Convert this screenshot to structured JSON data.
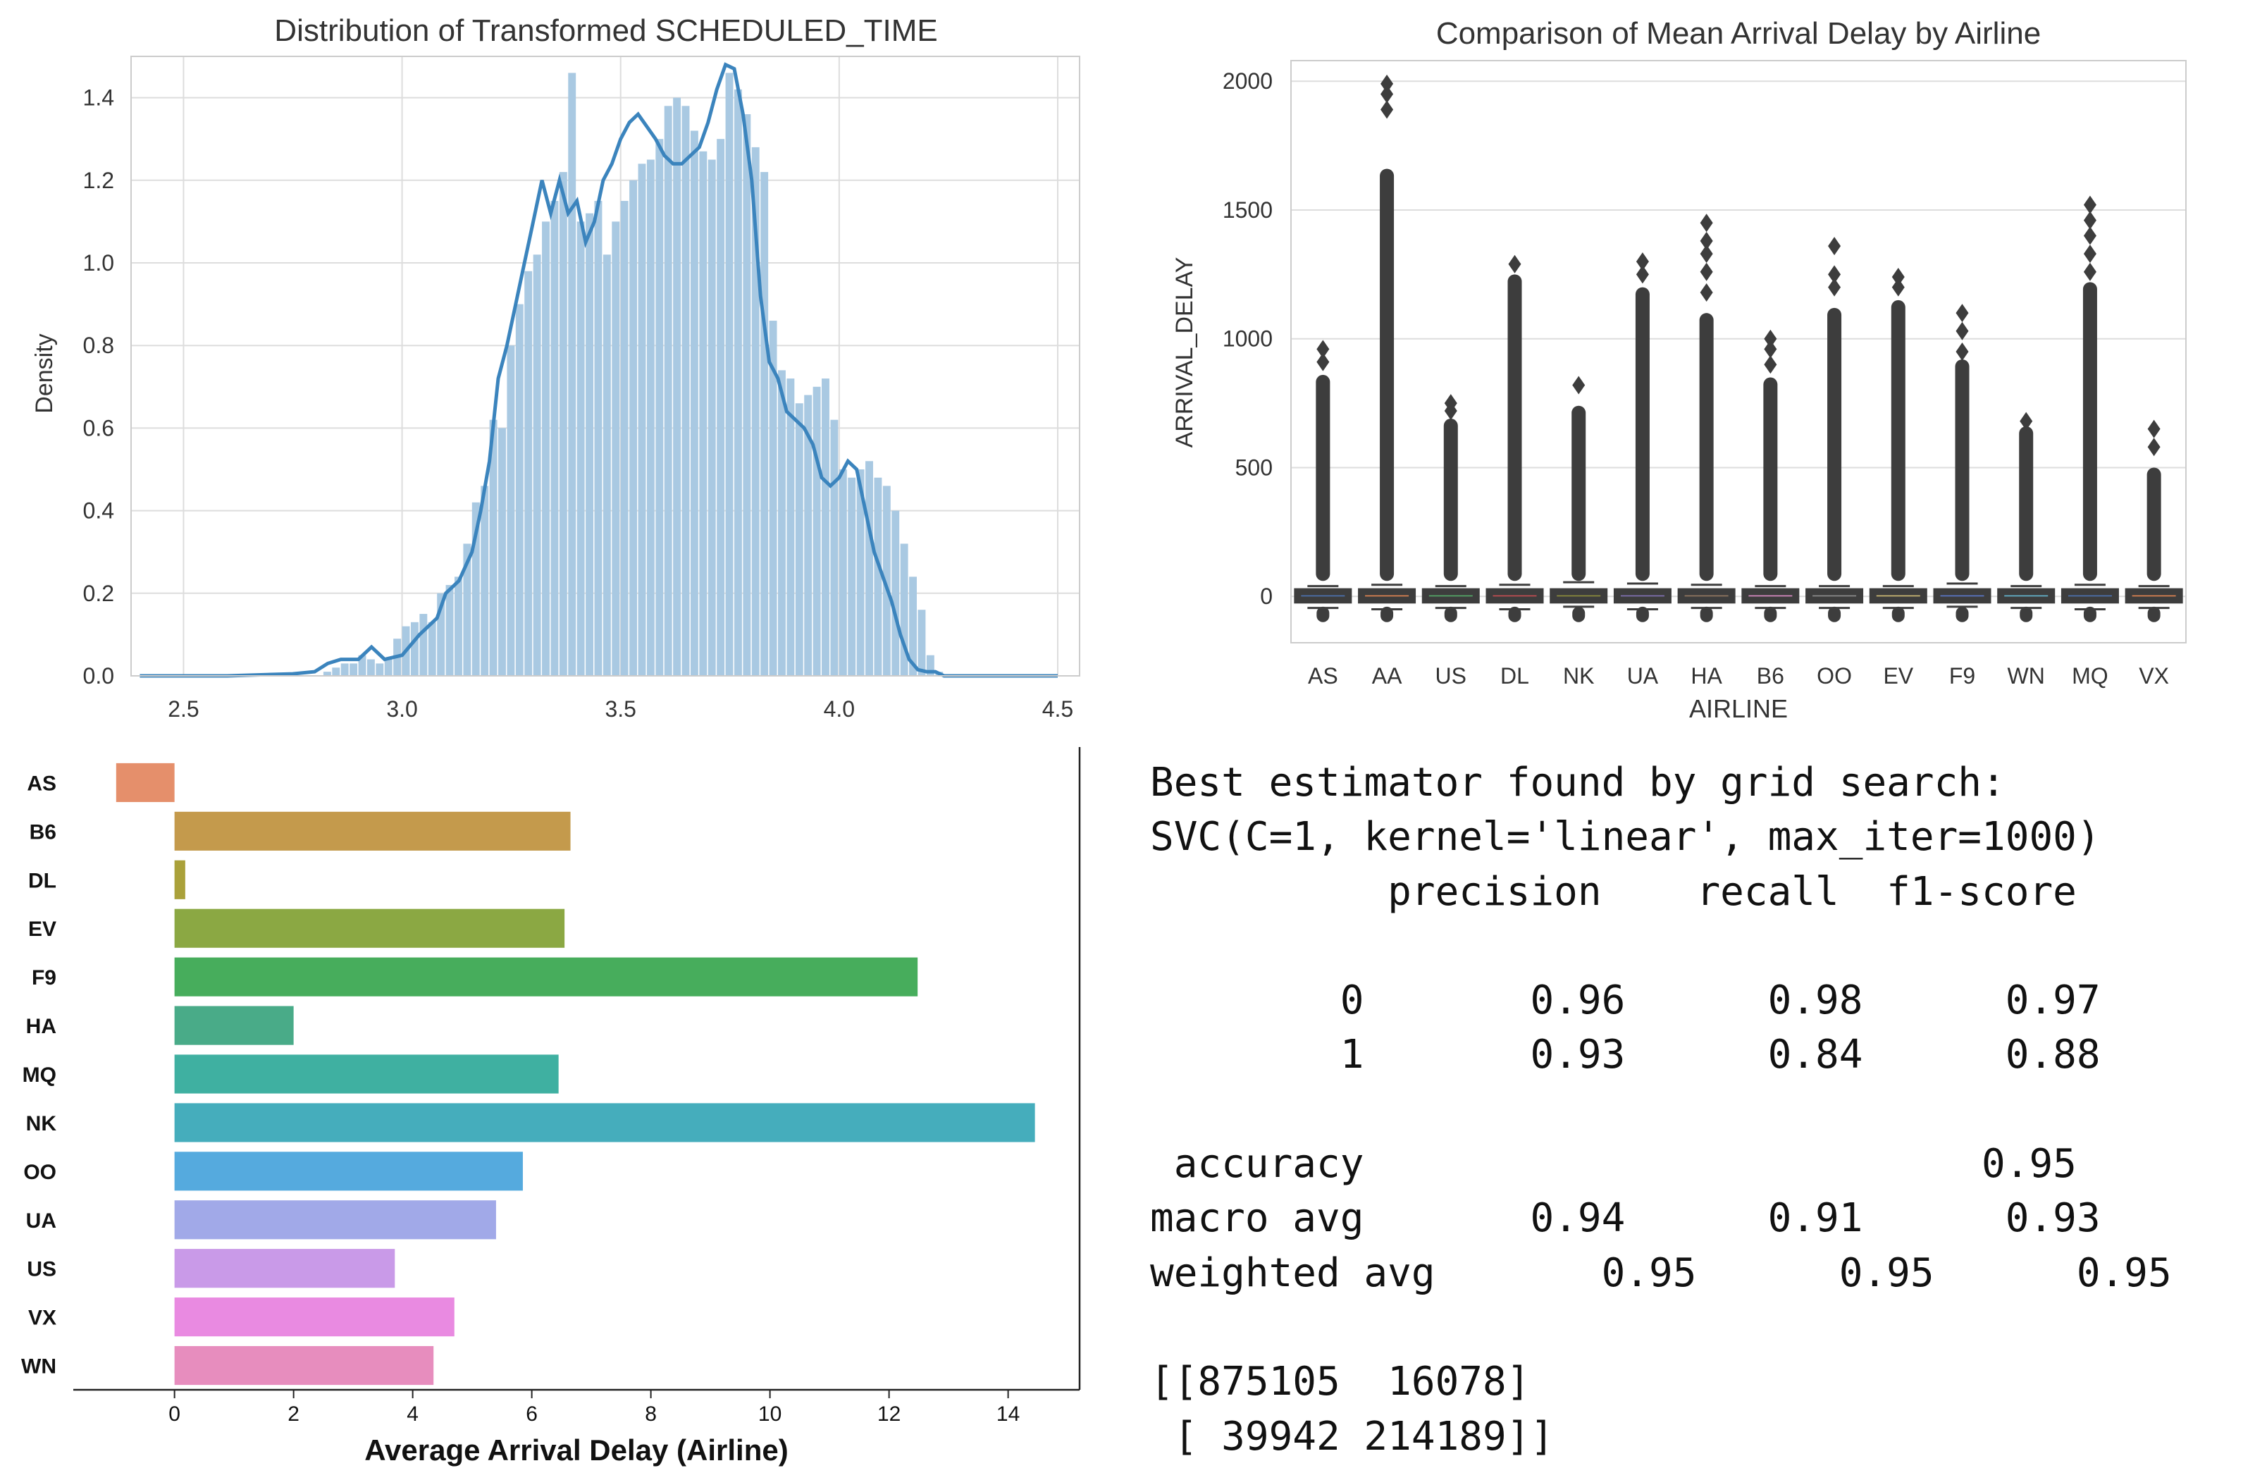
{
  "chart_data": [
    {
      "type": "histogram",
      "title": "Distribution of Transformed SCHEDULED_TIME",
      "xlabel": "",
      "ylabel": "Density",
      "xlim": [
        2.38,
        4.55
      ],
      "ylim": [
        0,
        1.5
      ],
      "xticks": [
        "2.5",
        "3.0",
        "3.5",
        "4.0",
        "4.5"
      ],
      "yticks": [
        "0.0",
        "0.2",
        "0.4",
        "0.6",
        "0.8",
        "1.0",
        "1.2",
        "1.4"
      ],
      "grid": true,
      "bar_color": "#a9c9e2",
      "kde_color": "#3b84bd",
      "bins": {
        "x": [
          2.83,
          2.85,
          2.87,
          2.89,
          2.91,
          2.93,
          2.95,
          2.97,
          2.99,
          3.01,
          3.03,
          3.05,
          3.07,
          3.09,
          3.11,
          3.13,
          3.15,
          3.17,
          3.19,
          3.21,
          3.23,
          3.25,
          3.27,
          3.29,
          3.31,
          3.33,
          3.35,
          3.37,
          3.39,
          3.41,
          3.43,
          3.45,
          3.47,
          3.49,
          3.51,
          3.53,
          3.55,
          3.57,
          3.59,
          3.61,
          3.63,
          3.65,
          3.67,
          3.69,
          3.71,
          3.73,
          3.75,
          3.77,
          3.79,
          3.81,
          3.83,
          3.85,
          3.87,
          3.89,
          3.91,
          3.93,
          3.95,
          3.97,
          3.99,
          4.01,
          4.03,
          4.05,
          4.07,
          4.09,
          4.11,
          4.13,
          4.15,
          4.17,
          4.19,
          4.21,
          4.23
        ],
        "density": [
          0.01,
          0.02,
          0.03,
          0.03,
          0.05,
          0.04,
          0.03,
          0.04,
          0.09,
          0.12,
          0.13,
          0.15,
          0.13,
          0.2,
          0.22,
          0.24,
          0.32,
          0.42,
          0.46,
          0.62,
          0.6,
          0.8,
          0.9,
          0.98,
          1.02,
          1.1,
          1.15,
          1.22,
          1.46,
          1.1,
          1.12,
          1.15,
          1.02,
          1.1,
          1.15,
          1.2,
          1.24,
          1.25,
          1.3,
          1.38,
          1.4,
          1.38,
          1.32,
          1.27,
          1.25,
          1.3,
          1.46,
          1.42,
          1.36,
          1.28,
          1.22,
          0.86,
          0.74,
          0.72,
          0.66,
          0.68,
          0.7,
          0.72,
          0.62,
          0.5,
          0.48,
          0.5,
          0.52,
          0.48,
          0.46,
          0.4,
          0.32,
          0.24,
          0.16,
          0.05,
          0.01
        ]
      },
      "kde": {
        "x": [
          2.4,
          2.6,
          2.75,
          2.8,
          2.83,
          2.86,
          2.9,
          2.93,
          2.96,
          3.0,
          3.04,
          3.08,
          3.1,
          3.13,
          3.16,
          3.18,
          3.2,
          3.22,
          3.24,
          3.26,
          3.28,
          3.3,
          3.32,
          3.34,
          3.36,
          3.38,
          3.4,
          3.42,
          3.44,
          3.46,
          3.48,
          3.5,
          3.52,
          3.54,
          3.56,
          3.58,
          3.6,
          3.62,
          3.64,
          3.66,
          3.68,
          3.7,
          3.72,
          3.74,
          3.76,
          3.78,
          3.8,
          3.82,
          3.84,
          3.86,
          3.88,
          3.9,
          3.92,
          3.94,
          3.96,
          3.98,
          4.0,
          4.02,
          4.04,
          4.06,
          4.08,
          4.1,
          4.12,
          4.14,
          4.16,
          4.18,
          4.2,
          4.22,
          4.24,
          4.26,
          4.3,
          4.4,
          4.5
        ],
        "y": [
          0.0,
          0.0,
          0.005,
          0.01,
          0.03,
          0.04,
          0.04,
          0.07,
          0.04,
          0.05,
          0.1,
          0.14,
          0.2,
          0.23,
          0.3,
          0.4,
          0.52,
          0.72,
          0.8,
          0.9,
          1.0,
          1.1,
          1.2,
          1.12,
          1.2,
          1.12,
          1.15,
          1.05,
          1.1,
          1.2,
          1.24,
          1.3,
          1.34,
          1.36,
          1.33,
          1.3,
          1.26,
          1.24,
          1.24,
          1.26,
          1.28,
          1.34,
          1.42,
          1.48,
          1.47,
          1.36,
          1.2,
          0.92,
          0.76,
          0.72,
          0.64,
          0.62,
          0.6,
          0.56,
          0.48,
          0.46,
          0.48,
          0.52,
          0.5,
          0.4,
          0.3,
          0.24,
          0.18,
          0.1,
          0.04,
          0.015,
          0.01,
          0.01,
          0.0,
          0.0,
          0.0,
          0.0,
          0.0
        ]
      }
    },
    {
      "type": "box",
      "title": "Comparison of Mean Arrival Delay by Airline",
      "xlabel": "AIRLINE",
      "ylabel": "ARRIVAL_DELAY",
      "ylim": [
        -180,
        2080
      ],
      "yticks": [
        0,
        500,
        1000,
        1500,
        2000
      ],
      "grid": true,
      "categories": [
        "AS",
        "AA",
        "US",
        "DL",
        "NK",
        "UA",
        "HA",
        "B6",
        "OO",
        "EV",
        "F9",
        "WN",
        "MQ",
        "VX"
      ],
      "box_colors": [
        "#4c72b0",
        "#dd8452",
        "#55a868",
        "#c44e52",
        "#8c8c3c",
        "#8172b3",
        "#937860",
        "#da8bc3",
        "#8c8c8c",
        "#ccb974",
        "#5a78c8",
        "#64b5cd",
        "#4c72b0",
        "#dd8452"
      ],
      "whisker_top": [
        40,
        45,
        40,
        45,
        55,
        50,
        45,
        40,
        40,
        40,
        50,
        40,
        45,
        40
      ],
      "whisker_bottom": [
        -45,
        -50,
        -45,
        -50,
        -40,
        -50,
        -45,
        -45,
        -45,
        -45,
        -40,
        -45,
        -50,
        -45
      ],
      "outliers": [
        {
          "dense_to": 860,
          "points": [
            910,
            960
          ]
        },
        {
          "dense_to": 1660,
          "points": [
            1890,
            1950,
            1990
          ]
        },
        {
          "dense_to": 690,
          "points": [
            720,
            750
          ]
        },
        {
          "dense_to": 1250,
          "points": [
            1290
          ]
        },
        {
          "dense_to": 740,
          "points": [
            820
          ]
        },
        {
          "dense_to": 1200,
          "points": [
            1250,
            1300
          ]
        },
        {
          "dense_to": 1100,
          "points": [
            1180,
            1260,
            1330,
            1380,
            1450
          ]
        },
        {
          "dense_to": 850,
          "points": [
            900,
            960,
            1000
          ]
        },
        {
          "dense_to": 1120,
          "points": [
            1200,
            1250,
            1360
          ]
        },
        {
          "dense_to": 1150,
          "points": [
            1200,
            1240
          ]
        },
        {
          "dense_to": 920,
          "points": [
            950,
            1030,
            1100
          ]
        },
        {
          "dense_to": 660,
          "points": [
            680
          ]
        },
        {
          "dense_to": 1220,
          "points": [
            1260,
            1330,
            1400,
            1460,
            1520
          ]
        },
        {
          "dense_to": 500,
          "points": [
            580,
            650
          ]
        }
      ]
    },
    {
      "type": "bar",
      "orientation": "horizontal",
      "title": "",
      "xlabel": "Average Arrival Delay (Airline)",
      "ylabel": "",
      "xlim": [
        -1.7,
        15.2
      ],
      "xticks": [
        0,
        2,
        4,
        6,
        8,
        10,
        12,
        14
      ],
      "grid": false,
      "categories": [
        "AS",
        "B6",
        "DL",
        "EV",
        "F9",
        "HA",
        "MQ",
        "NK",
        "OO",
        "UA",
        "US",
        "VX",
        "WN"
      ],
      "values": [
        -0.98,
        6.65,
        0.18,
        6.55,
        12.48,
        2.0,
        6.45,
        14.45,
        5.85,
        5.4,
        3.7,
        4.7,
        4.35
      ],
      "colors": [
        "#e58f6b",
        "#c49a4c",
        "#aaa13a",
        "#8ba843",
        "#47ad5c",
        "#49ab88",
        "#3fb0a1",
        "#45adbc",
        "#55aade",
        "#a1a9e8",
        "#c99ae8",
        "#e98ae1",
        "#e78dbe"
      ]
    }
  ],
  "report": {
    "lines": [
      "Best estimator found by grid search:",
      "SVC(C=1, kernel='linear', max_iter=1000)",
      "          precision    recall  f1-score",
      "",
      "        0       0.96      0.98      0.97",
      "        1       0.93      0.84      0.88",
      "",
      " accuracy                          0.95",
      "macro avg       0.94      0.91      0.93",
      "weighted avg       0.95      0.95      0.95",
      "",
      "[[875105  16078]",
      " [ 39942 214189]]"
    ]
  }
}
